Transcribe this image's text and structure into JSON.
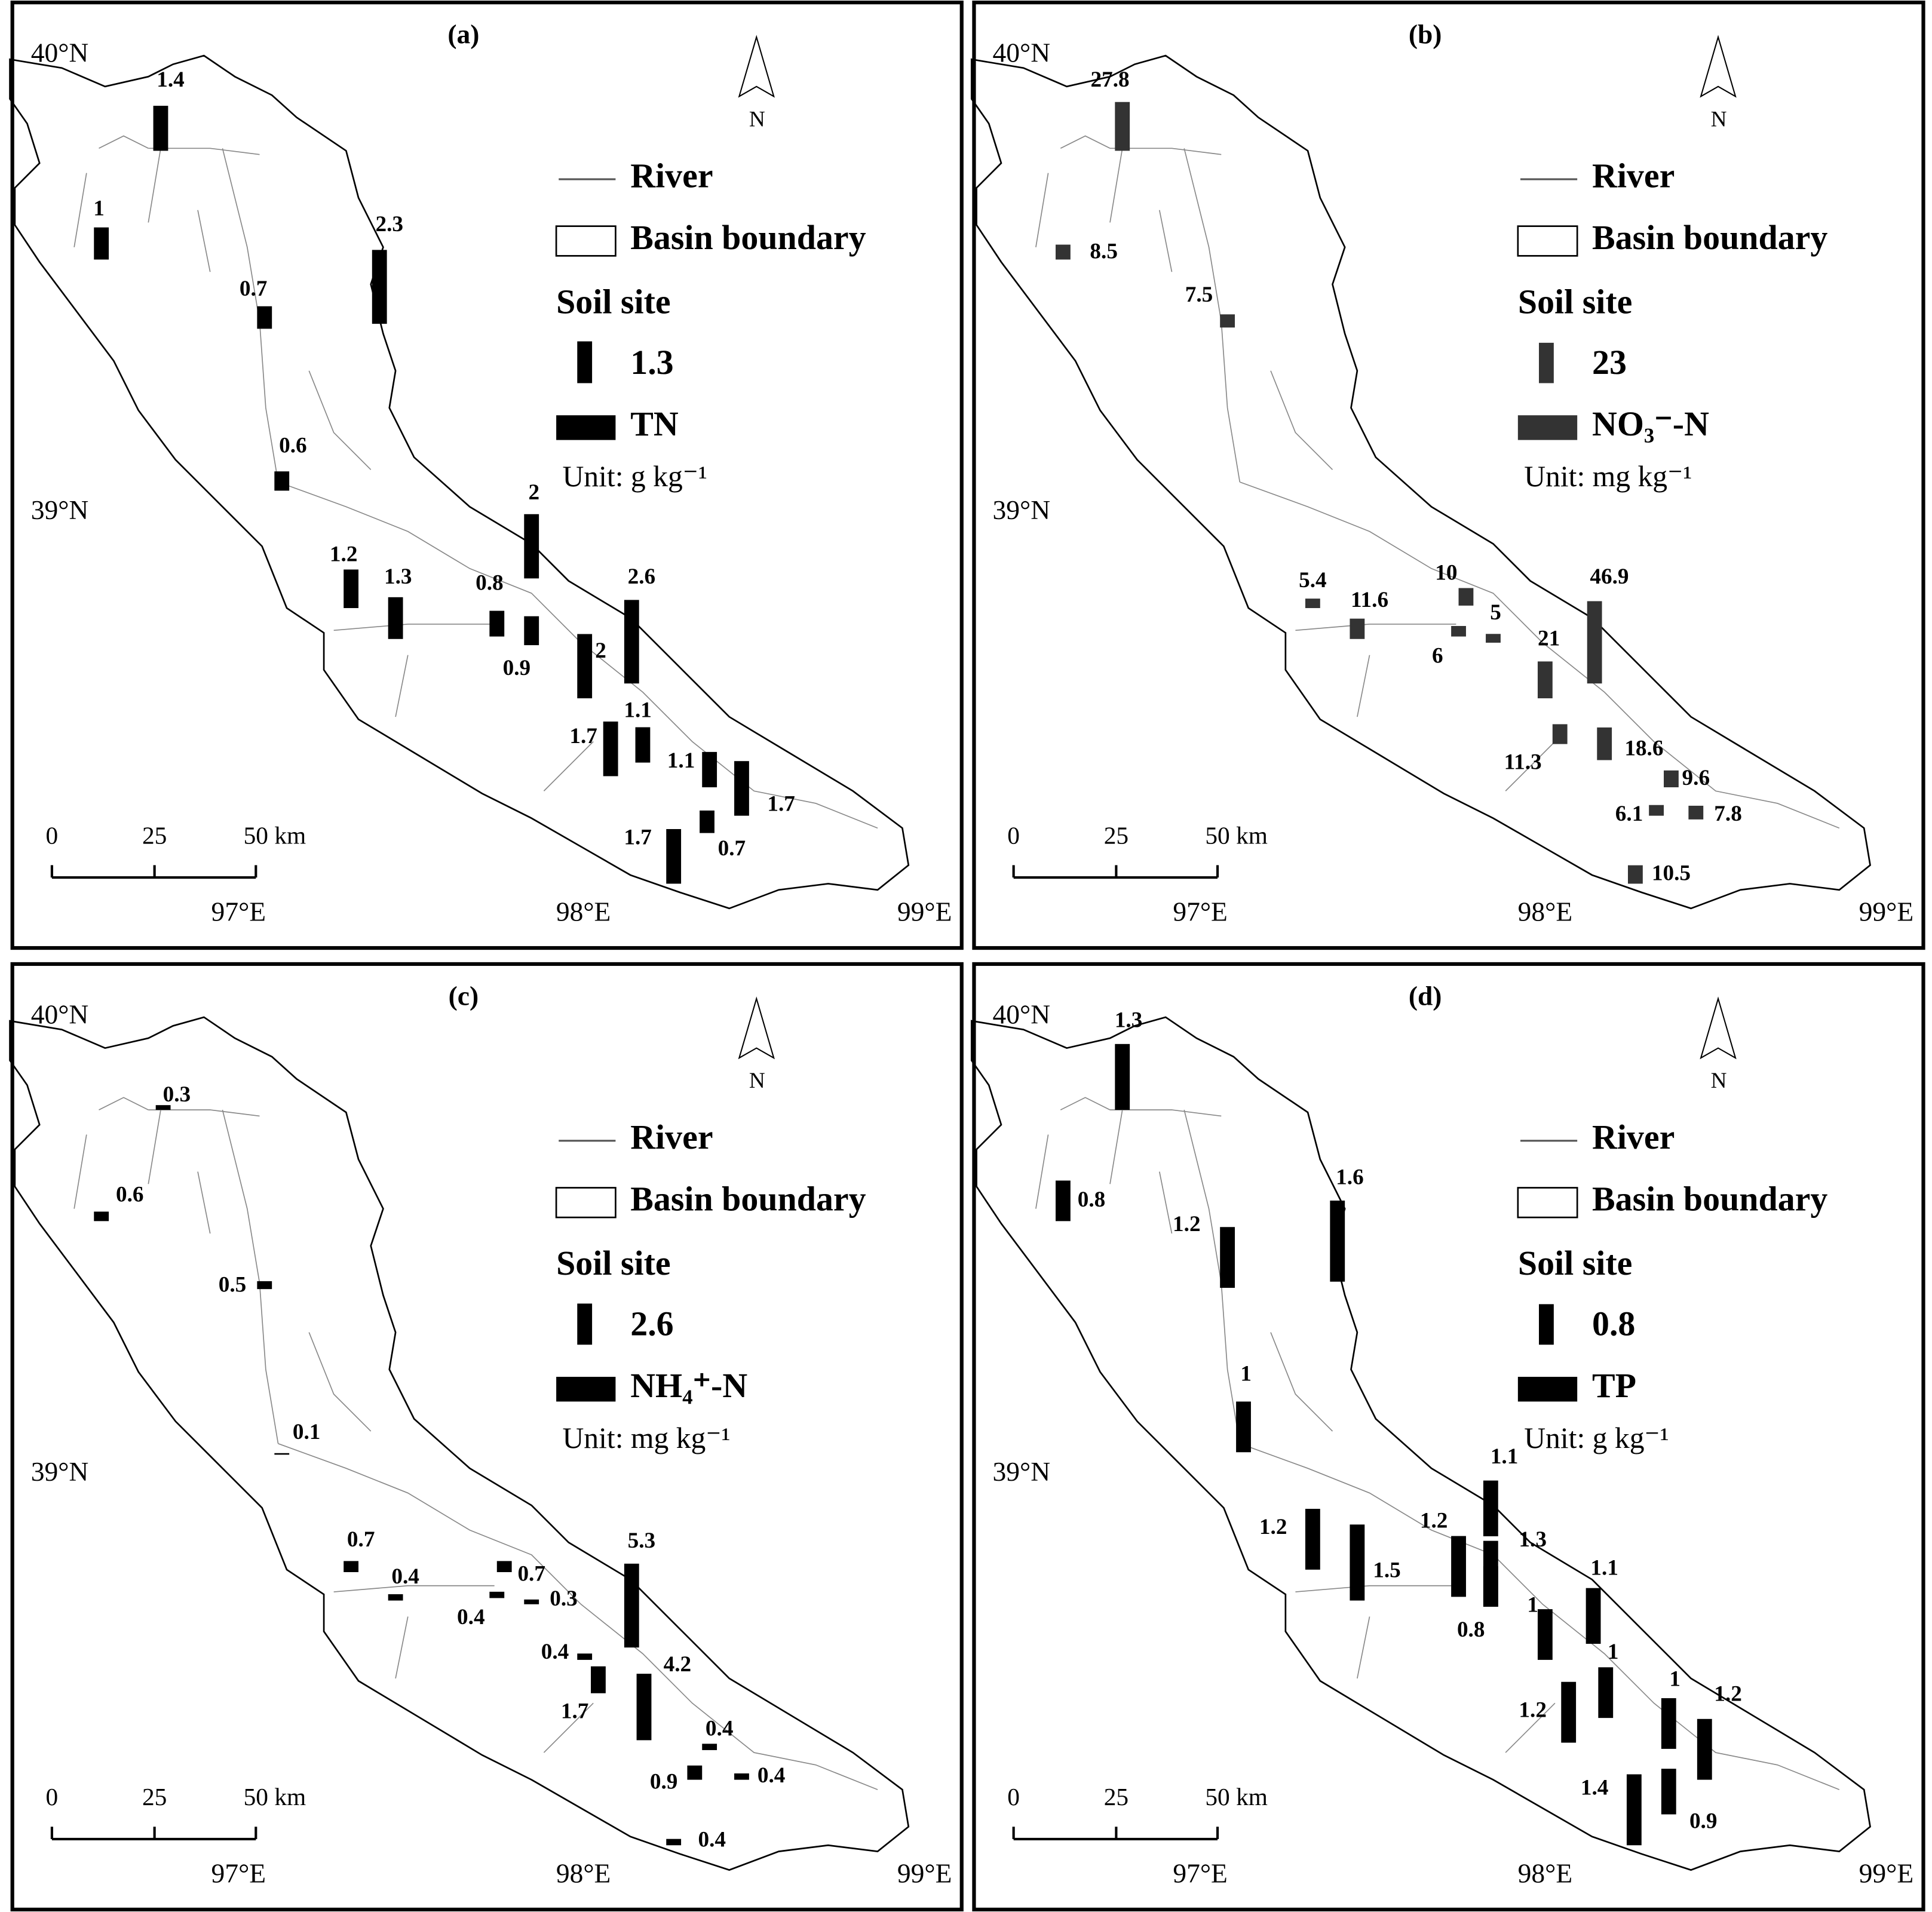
{
  "panels": [
    {
      "label": "(a)",
      "north": "N",
      "lat": [
        "40°N",
        "39°N"
      ],
      "lon": [
        "97°E",
        "98°E",
        "99°E"
      ],
      "scale": [
        0,
        25,
        50
      ],
      "scale_unit": "km",
      "legend": {
        "river": "River",
        "basin": "Basin boundary",
        "soil_site": "Soil site",
        "sample": 1.3,
        "variable": "TN",
        "unit": "Unit: g kg⁻¹"
      },
      "sites": [
        1.4,
        1,
        2.3,
        0.7,
        0.6,
        1.2,
        1.3,
        0.8,
        0.9,
        2,
        2,
        2.6,
        1.7,
        1.1,
        1.1,
        1.7,
        0.7,
        1.7
      ]
    },
    {
      "label": "(b)",
      "north": "N",
      "lat": [
        "40°N",
        "39°N"
      ],
      "lon": [
        "97°E",
        "98°E",
        "99°E"
      ],
      "scale": [
        0,
        25,
        50
      ],
      "scale_unit": "km",
      "legend": {
        "river": "River",
        "basin": "Basin boundary",
        "soil_site": "Soil site",
        "sample": 23,
        "variable": "NO₃⁻-N",
        "unit": "Unit: mg kg⁻¹"
      },
      "sites": [
        27.8,
        8.5,
        7.5,
        5.4,
        11.6,
        10,
        6,
        5,
        21,
        46.9,
        11.3,
        18.6,
        9.6,
        6.1,
        7.8,
        10.5
      ]
    },
    {
      "label": "(c)",
      "north": "N",
      "lat": [
        "40°N",
        "39°N"
      ],
      "lon": [
        "97°E",
        "98°E",
        "99°E"
      ],
      "scale": [
        0,
        25,
        50
      ],
      "scale_unit": "km",
      "legend": {
        "river": "River",
        "basin": "Basin boundary",
        "soil_site": "Soil site",
        "sample": 2.6,
        "variable": "NH₄⁺-N",
        "unit": "Unit: mg kg⁻¹"
      },
      "sites": [
        0.3,
        0.6,
        0.5,
        0.1,
        0.7,
        0.4,
        0.7,
        0.4,
        0.3,
        0.4,
        5.3,
        1.7,
        4.2,
        0.4,
        0.4,
        0.9,
        0.4
      ]
    },
    {
      "label": "(d)",
      "north": "N",
      "lat": [
        "40°N",
        "39°N"
      ],
      "lon": [
        "97°E",
        "98°E",
        "99°E"
      ],
      "scale": [
        0,
        25,
        50
      ],
      "scale_unit": "km",
      "legend": {
        "river": "River",
        "basin": "Basin boundary",
        "soil_site": "Soil site",
        "sample": 0.8,
        "variable": "TP",
        "unit": "Unit: g kg⁻¹"
      },
      "sites": [
        1.3,
        0.8,
        1.2,
        1.6,
        1,
        1.1,
        1.2,
        1.5,
        1.2,
        1.3,
        0.8,
        1,
        1.1,
        1,
        1.2,
        1,
        1.2,
        1.4,
        0.9
      ]
    }
  ]
}
